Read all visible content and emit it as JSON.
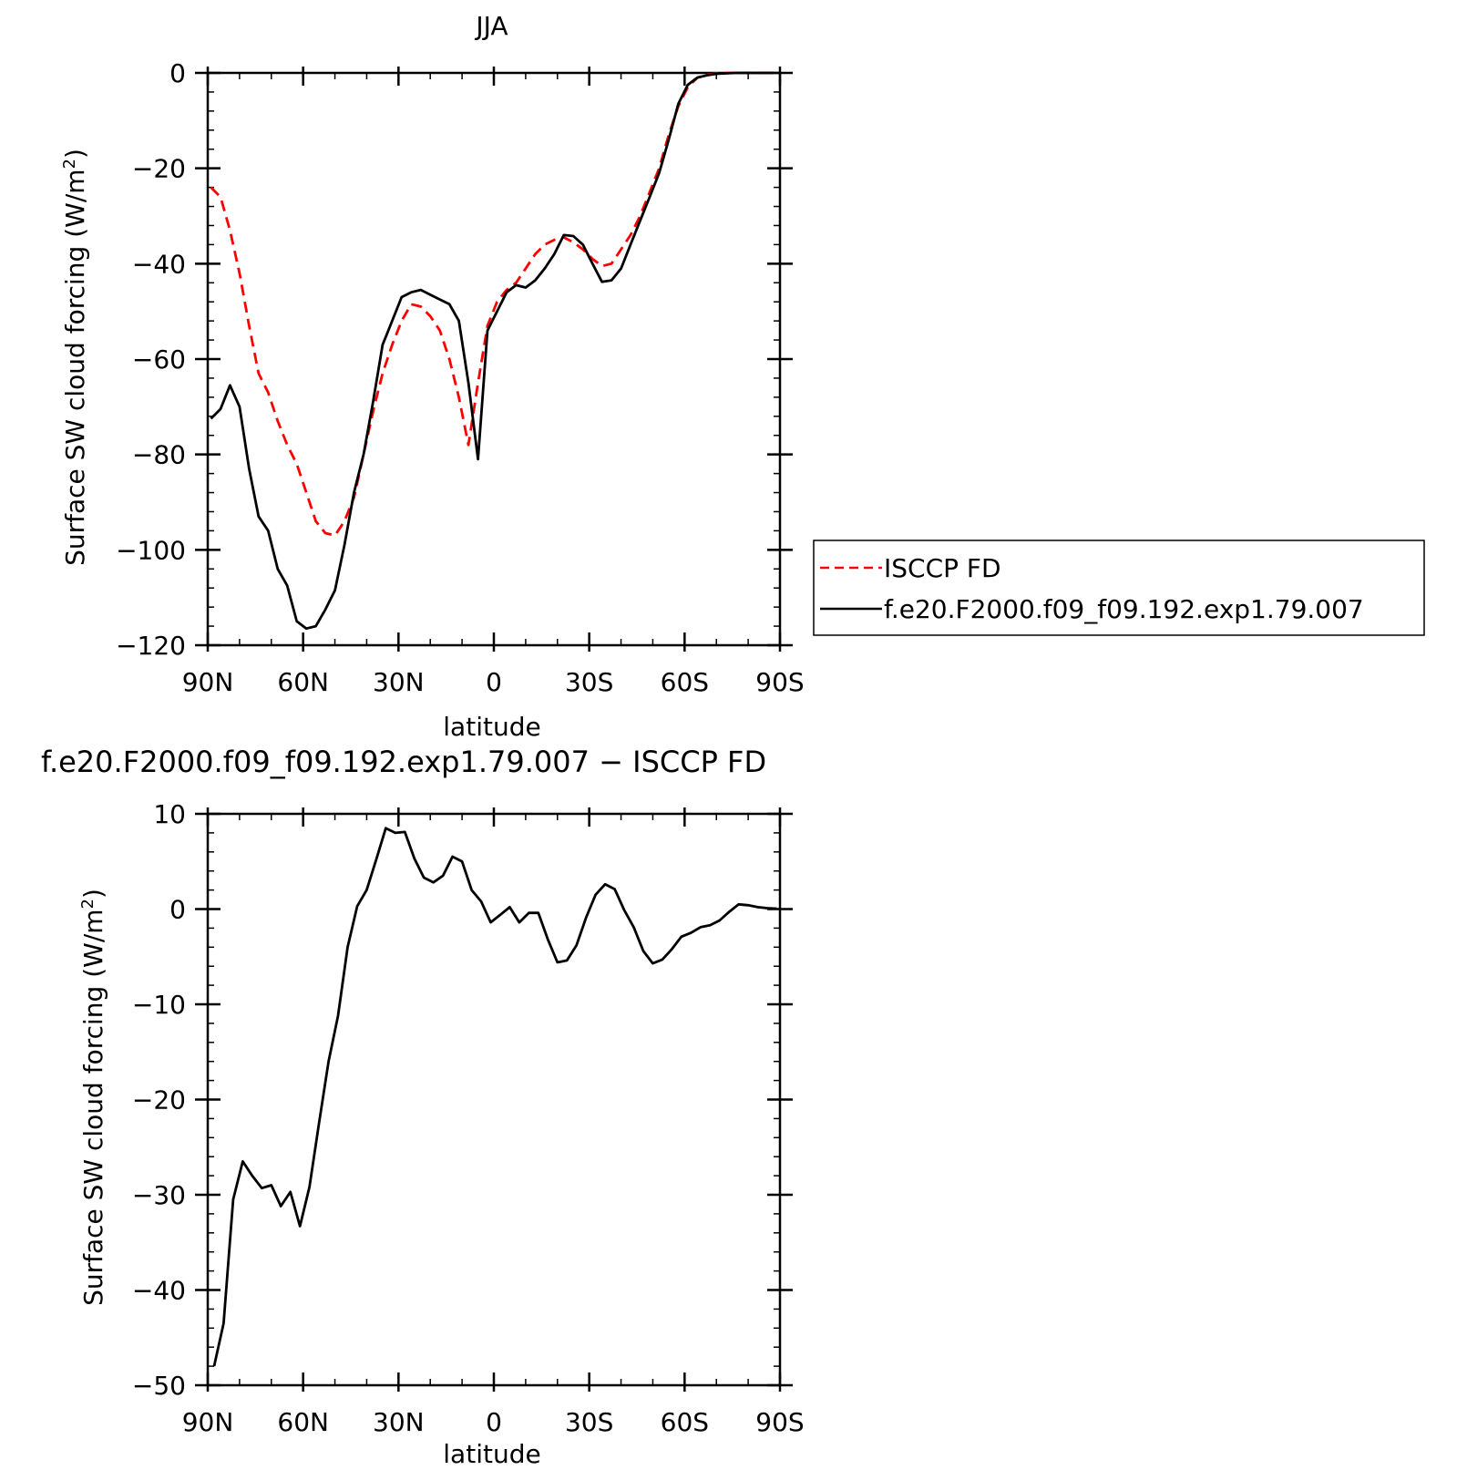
{
  "chart_data": [
    {
      "type": "line",
      "title": "JJA",
      "xlabel": "latitude",
      "ylabel": "Surface SW cloud forcing (W/m",
      "ylabel_sup": "2",
      "ylabel_close": ")",
      "xlim": [
        90,
        -90
      ],
      "ylim": [
        -120,
        0
      ],
      "xticks": [
        90,
        60,
        30,
        0,
        -30,
        -60,
        -90
      ],
      "xticklabels": [
        "90N",
        "60N",
        "30N",
        "0",
        "30S",
        "60S",
        "90S"
      ],
      "yticks": [
        0,
        -20,
        -40,
        -60,
        -80,
        -100,
        -120
      ],
      "yticklabels": [
        "0",
        "−20",
        "−40",
        "−60",
        "−80",
        "−100",
        "−120"
      ],
      "legend_position": "right",
      "series": [
        {
          "name": "ISCCP FD",
          "color": "#ff0000",
          "dash": "dashed",
          "x": [
            89,
            86,
            83,
            80,
            77,
            74,
            71,
            68,
            65,
            62,
            59,
            56,
            53,
            50,
            47,
            44,
            41,
            38,
            35,
            32,
            29,
            26,
            23,
            20,
            17,
            14,
            11,
            8,
            5,
            2,
            -1,
            -4,
            -7,
            -10,
            -13,
            -16,
            -19,
            -22,
            -25,
            -28,
            -31,
            -34,
            -37,
            -40,
            -43,
            -46,
            -49,
            -52,
            -55,
            -58,
            -61,
            -64,
            -67,
            -70,
            -73,
            -76,
            -79,
            -82,
            -85,
            -88
          ],
          "y": [
            -24,
            -26,
            -33,
            -42,
            -53,
            -63,
            -67,
            -73,
            -78,
            -82,
            -88,
            -94,
            -96.5,
            -97,
            -94,
            -89,
            -80,
            -71,
            -63,
            -57,
            -52,
            -48.5,
            -49,
            -51,
            -54,
            -60,
            -68,
            -78,
            -65,
            -53,
            -48,
            -45.5,
            -44,
            -41,
            -38,
            -36,
            -35,
            -34.5,
            -35.5,
            -37,
            -39,
            -40.5,
            -40,
            -37,
            -34,
            -30,
            -25,
            -20,
            -13,
            -7,
            -3,
            -1,
            -0.4,
            -0.1,
            0,
            0,
            0,
            0,
            0,
            0
          ]
        },
        {
          "name": "f.e20.F2000.f09_f09.192.exp1.79.007",
          "color": "#000000",
          "dash": "solid",
          "x": [
            89,
            86,
            83,
            80,
            77,
            74,
            71,
            68,
            65,
            62,
            59,
            56,
            53,
            50,
            47,
            44,
            41,
            38,
            35,
            32,
            29,
            26,
            23,
            20,
            17,
            14,
            11,
            8,
            5,
            2,
            -1,
            -4,
            -7,
            -10,
            -13,
            -16,
            -19,
            -22,
            -25,
            -28,
            -31,
            -34,
            -37,
            -40,
            -43,
            -46,
            -49,
            -52,
            -55,
            -58,
            -61,
            -64,
            -67,
            -70,
            -73,
            -76,
            -79,
            -82,
            -85,
            -88
          ],
          "y": [
            -72.5,
            -70.5,
            -65.5,
            -70,
            -83,
            -93,
            -96,
            -104,
            -107.5,
            -115,
            -116.5,
            -116,
            -112.5,
            -108.5,
            -99,
            -88,
            -80,
            -69,
            -57,
            -52,
            -47,
            -46,
            -45.5,
            -46.5,
            -47.5,
            -48.5,
            -52,
            -65,
            -81,
            -54,
            -50,
            -46,
            -44.5,
            -45,
            -43.5,
            -41,
            -38,
            -34,
            -34.2,
            -36,
            -40,
            -43.8,
            -43.5,
            -41,
            -36,
            -31,
            -26,
            -21,
            -14,
            -6.5,
            -2.5,
            -1,
            -0.5,
            -0.2,
            -0.1,
            0,
            0,
            0,
            0,
            0
          ]
        }
      ]
    },
    {
      "type": "line",
      "title": "f.e20.F2000.f09_f09.192.exp1.79.007 − ISCCP FD",
      "xlabel": "latitude",
      "ylabel": "Surface SW cloud forcing (W/m",
      "ylabel_sup": "2",
      "ylabel_close": ")",
      "xlim": [
        90,
        -90
      ],
      "ylim": [
        -50,
        10
      ],
      "xticks": [
        90,
        60,
        30,
        0,
        -30,
        -60,
        -90
      ],
      "xticklabels": [
        "90N",
        "60N",
        "30N",
        "0",
        "30S",
        "60S",
        "90S"
      ],
      "yticks": [
        10,
        0,
        -10,
        -20,
        -30,
        -40,
        -50
      ],
      "yticklabels": [
        "10",
        "0",
        "−10",
        "−20",
        "−30",
        "−40",
        "−50"
      ],
      "series": [
        {
          "color": "#000000",
          "dash": "solid",
          "x": [
            88,
            85,
            82,
            79,
            76,
            73,
            70,
            67,
            64,
            61,
            58,
            55,
            52,
            49,
            46,
            43,
            40,
            37,
            34,
            31,
            28,
            25,
            22,
            19,
            16,
            13,
            10,
            7,
            4,
            1,
            -2,
            -5,
            -8,
            -11,
            -14,
            -17,
            -20,
            -23,
            -26,
            -29,
            -32,
            -35,
            -38,
            -41,
            -44,
            -47,
            -50,
            -53,
            -56,
            -59,
            -62,
            -65,
            -68,
            -71,
            -74,
            -77,
            -80,
            -83,
            -86,
            -89
          ],
          "y": [
            -48,
            -43.5,
            -30.5,
            -26.5,
            -28,
            -29.3,
            -29,
            -31.2,
            -29.7,
            -33.3,
            -29.2,
            -22.5,
            -16,
            -11.2,
            -4,
            0.3,
            2,
            5.2,
            8.5,
            8,
            8.1,
            5.3,
            3.3,
            2.8,
            3.5,
            5.5,
            5,
            2,
            0.8,
            -1.4,
            -0.6,
            0.2,
            -1.4,
            -0.4,
            -0.4,
            -3.2,
            -5.6,
            -5.4,
            -3.8,
            -0.9,
            1.5,
            2.6,
            2.1,
            -0.1,
            -1.9,
            -4.4,
            -5.7,
            -5.3,
            -4.2,
            -2.9,
            -2.5,
            -1.9,
            -1.7,
            -1.2,
            -0.3,
            0.5,
            0.4,
            0.2,
            0.1,
            0.05
          ]
        }
      ]
    }
  ]
}
